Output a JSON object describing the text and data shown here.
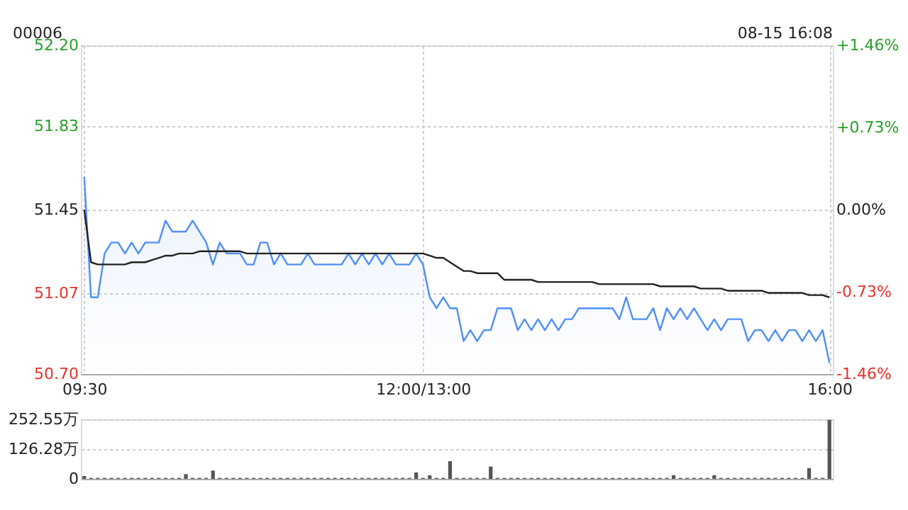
{
  "chart_data": [
    {
      "type": "line",
      "title": "00006",
      "annotations": [
        "08-15 16:08"
      ],
      "grid": true,
      "categories": [
        "09:30",
        null,
        null,
        null,
        null,
        null,
        null,
        null,
        null,
        null,
        null,
        null,
        null,
        null,
        null,
        null,
        null,
        null,
        null,
        null,
        null,
        null,
        null,
        null,
        null,
        null,
        null,
        null,
        null,
        null,
        null,
        null,
        null,
        null,
        null,
        null,
        null,
        null,
        null,
        null,
        null,
        null,
        null,
        null,
        null,
        null,
        null,
        null,
        null,
        null,
        "12:00/13:00",
        null,
        null,
        null,
        null,
        null,
        null,
        null,
        null,
        null,
        null,
        null,
        null,
        null,
        null,
        null,
        null,
        null,
        null,
        null,
        null,
        null,
        null,
        null,
        null,
        null,
        null,
        null,
        null,
        null,
        null,
        null,
        null,
        null,
        null,
        null,
        null,
        null,
        null,
        null,
        null,
        null,
        null,
        null,
        null,
        null,
        null,
        null,
        null,
        null,
        null,
        null,
        null,
        null,
        null,
        null,
        null,
        null,
        null,
        null,
        "16:00"
      ],
      "ylim": [
        50.7,
        52.2
      ],
      "yticks": [
        {
          "value": 50.7,
          "label": "50.70"
        },
        {
          "value": 51.07,
          "label": "51.07"
        },
        {
          "value": 51.45,
          "label": "51.45"
        },
        {
          "value": 51.83,
          "label": "51.83"
        },
        {
          "value": 52.2,
          "label": "52.20"
        }
      ],
      "y2lim": [
        -1.46,
        1.46
      ],
      "y2ticks": [
        {
          "value": -1.46,
          "label": "-1.46%"
        },
        {
          "value": -0.73,
          "label": "-0.73%"
        },
        {
          "value": 0,
          "label": "0.00%"
        },
        {
          "value": 0.73,
          "label": "+0.73%"
        },
        {
          "value": 1.46,
          "label": "+1.46%"
        }
      ],
      "series": [
        {
          "type": "area",
          "color": "#4f8ef7",
          "values": [
            51.6,
            51.05,
            51.05,
            51.25,
            51.3,
            51.3,
            51.25,
            51.3,
            51.25,
            51.3,
            51.3,
            51.3,
            51.4,
            51.35,
            51.35,
            51.35,
            51.4,
            51.35,
            51.3,
            51.2,
            51.3,
            51.25,
            51.25,
            51.25,
            51.2,
            51.2,
            51.3,
            51.3,
            51.2,
            51.25,
            51.2,
            51.2,
            51.2,
            51.25,
            51.2,
            51.2,
            51.2,
            51.2,
            51.2,
            51.25,
            51.2,
            51.25,
            51.2,
            51.25,
            51.2,
            51.25,
            51.2,
            51.2,
            51.2,
            51.25,
            51.2,
            51.05,
            51.0,
            51.05,
            51.0,
            51.0,
            50.85,
            50.9,
            50.85,
            50.9,
            50.9,
            51.0,
            51.0,
            51.0,
            50.9,
            50.95,
            50.9,
            50.95,
            50.9,
            50.95,
            50.9,
            50.95,
            50.95,
            51.0,
            51.0,
            51.0,
            51.0,
            51.0,
            51.0,
            50.95,
            51.05,
            50.95,
            50.95,
            50.95,
            51.0,
            50.9,
            51.0,
            50.95,
            51.0,
            50.95,
            51.0,
            50.95,
            50.9,
            50.95,
            50.9,
            50.95,
            50.95,
            50.95,
            50.85,
            50.9,
            50.9,
            50.85,
            50.9,
            50.85,
            50.9,
            50.9,
            50.85,
            50.9,
            50.85,
            50.9,
            50.75
          ]
        },
        {
          "type": "line",
          "color": "#222222",
          "values": [
            51.45,
            51.21,
            51.2,
            51.2,
            51.2,
            51.2,
            51.2,
            51.21,
            51.21,
            51.21,
            51.22,
            51.23,
            51.24,
            51.24,
            51.25,
            51.25,
            51.25,
            51.26,
            51.26,
            51.26,
            51.26,
            51.26,
            51.26,
            51.26,
            51.25,
            51.25,
            51.25,
            51.25,
            51.25,
            51.25,
            51.25,
            51.25,
            51.25,
            51.25,
            51.25,
            51.25,
            51.25,
            51.25,
            51.25,
            51.25,
            51.25,
            51.25,
            51.25,
            51.25,
            51.25,
            51.25,
            51.25,
            51.25,
            51.25,
            51.25,
            51.25,
            51.24,
            51.23,
            51.23,
            51.21,
            51.19,
            51.17,
            51.17,
            51.16,
            51.16,
            51.16,
            51.16,
            51.13,
            51.13,
            51.13,
            51.13,
            51.13,
            51.12,
            51.12,
            51.12,
            51.12,
            51.12,
            51.12,
            51.12,
            51.12,
            51.12,
            51.11,
            51.11,
            51.11,
            51.11,
            51.11,
            51.11,
            51.11,
            51.11,
            51.11,
            51.1,
            51.1,
            51.1,
            51.1,
            51.1,
            51.1,
            51.09,
            51.09,
            51.09,
            51.09,
            51.08,
            51.08,
            51.08,
            51.08,
            51.08,
            51.08,
            51.07,
            51.07,
            51.07,
            51.07,
            51.07,
            51.07,
            51.06,
            51.06,
            51.06,
            51.05
          ]
        }
      ]
    },
    {
      "type": "bar",
      "grid": "y",
      "tick_labels": "y",
      "categories": [
        null,
        null,
        null,
        null,
        null,
        null,
        null,
        null,
        null,
        null,
        null,
        null,
        null,
        null,
        null,
        null,
        null,
        null,
        null,
        null,
        null,
        null,
        null,
        null,
        null,
        null,
        null,
        null,
        null,
        null,
        null,
        null,
        null,
        null,
        null,
        null,
        null,
        null,
        null,
        null,
        null,
        null,
        null,
        null,
        null,
        null,
        null,
        null,
        null,
        null,
        null,
        null,
        null,
        null,
        null,
        null,
        null,
        null,
        null,
        null,
        null,
        null,
        null,
        null,
        null,
        null,
        null,
        null,
        null,
        null,
        null,
        null,
        null,
        null,
        null,
        null,
        null,
        null,
        null,
        null,
        null,
        null,
        null,
        null,
        null,
        null,
        null,
        null,
        null,
        null,
        null,
        null,
        null,
        null,
        null,
        null,
        null,
        null,
        null,
        null,
        null,
        null,
        null,
        null,
        null,
        null,
        null,
        null,
        null,
        null,
        null
      ],
      "ylim": [
        0,
        252.55
      ],
      "yticks": [
        0,
        {
          "value": 126.28,
          "label": "126.28万"
        },
        {
          "value": 252.55,
          "label": "252.55万"
        }
      ],
      "series": [
        {
          "color": "#555555",
          "values": [
            12,
            4,
            4,
            4,
            4,
            4,
            4,
            4,
            4,
            4,
            4,
            4,
            4,
            4,
            4,
            20,
            4,
            4,
            4,
            35,
            4,
            4,
            4,
            4,
            4,
            4,
            4,
            4,
            4,
            4,
            4,
            4,
            4,
            4,
            4,
            4,
            4,
            4,
            4,
            4,
            4,
            4,
            4,
            4,
            4,
            4,
            4,
            4,
            4,
            27,
            4,
            15,
            4,
            4,
            75,
            4,
            4,
            4,
            4,
            4,
            52,
            4,
            4,
            4,
            4,
            4,
            4,
            4,
            4,
            4,
            4,
            4,
            4,
            4,
            4,
            4,
            4,
            4,
            4,
            4,
            4,
            4,
            4,
            4,
            4,
            4,
            4,
            15,
            4,
            4,
            4,
            4,
            4,
            15,
            4,
            4,
            4,
            4,
            4,
            4,
            4,
            4,
            4,
            4,
            4,
            4,
            4,
            45,
            4,
            4,
            250
          ]
        }
      ]
    }
  ]
}
